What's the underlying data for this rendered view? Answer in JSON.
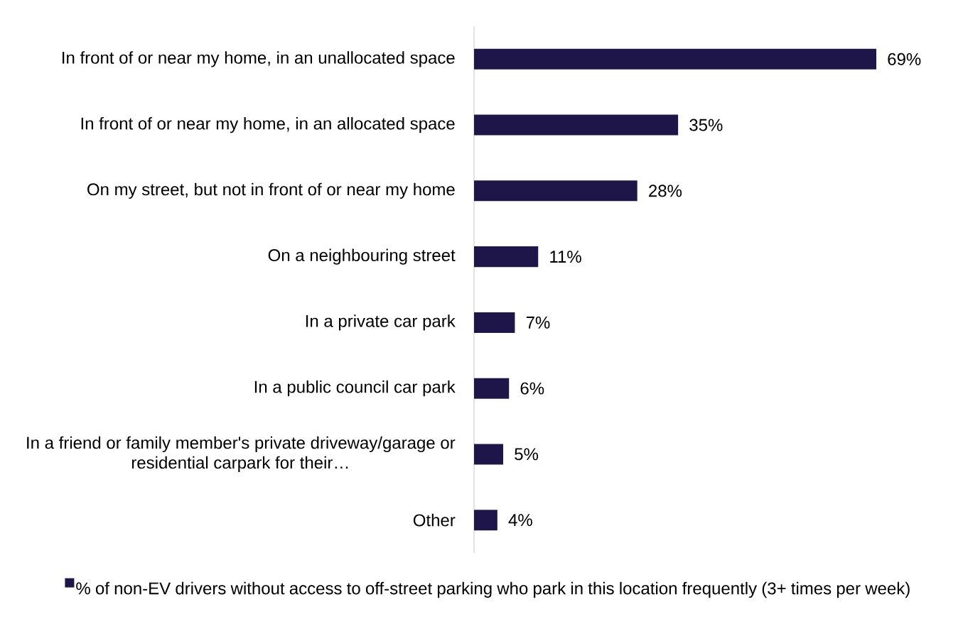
{
  "chart_data": {
    "type": "bar",
    "orientation": "horizontal",
    "categories": [
      "In front of or near my home, in an unallocated space",
      "In front of or near my home, in an allocated space",
      "On my street, but not in front of or near my home",
      "On a neighbouring street",
      "In a private car park",
      "In a public council car park",
      "In a friend or family member's private driveway/garage or residential carpark for their…",
      "Other"
    ],
    "series": [
      {
        "name": "% of non-EV drivers without access to off-street parking who park in this location frequently (3+ times per week)",
        "color": "#1e1548",
        "values": [
          69,
          35,
          28,
          11,
          7,
          6,
          5,
          4
        ],
        "value_labels": [
          "69%",
          "35%",
          "28%",
          "11%",
          "7%",
          "6%",
          "5%",
          "4%"
        ]
      }
    ],
    "legend": "bottom"
  }
}
